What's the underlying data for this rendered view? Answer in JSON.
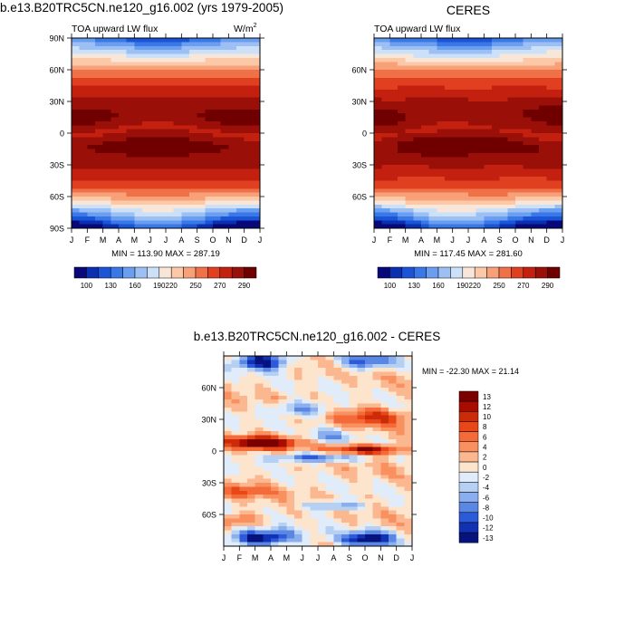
{
  "chart_data": [
    {
      "type": "heatmap",
      "title": "b.e13.B20TRC5CN.ne120_g16.002 (yrs 1979-2005)",
      "subtitle_left": "TOA upward LW flux",
      "units_base": "W/m",
      "units_exp": "2",
      "stats": "MIN = 113.90 MAX = 287.19",
      "x_ticks": [
        "J",
        "F",
        "M",
        "A",
        "M",
        "J",
        "J",
        "A",
        "S",
        "O",
        "N",
        "D",
        "J"
      ],
      "y_ticks": [
        "90N",
        "60N",
        "30N",
        "0",
        "30S",
        "60S",
        "90S"
      ],
      "ylim": [
        -90,
        90
      ],
      "colorbar_labels": [
        "100",
        "130",
        "160",
        "190",
        "220",
        "250",
        "270",
        "290"
      ],
      "model": "lw"
    },
    {
      "type": "heatmap",
      "title": "CERES",
      "subtitle_left": "TOA upward LW flux",
      "stats": "MIN = 117.45 MAX = 281.60",
      "x_ticks": [
        "J",
        "F",
        "M",
        "A",
        "M",
        "J",
        "J",
        "A",
        "S",
        "O",
        "N",
        "D",
        "J"
      ],
      "y_ticks": [
        "60N",
        "30N",
        "0",
        "30S",
        "60S"
      ],
      "ylim": [
        -90,
        90
      ],
      "colorbar_labels": [
        "100",
        "130",
        "160",
        "190",
        "220",
        "250",
        "270",
        "290"
      ],
      "model": "lw_obs"
    },
    {
      "type": "heatmap",
      "title": "b.e13.B20TRC5CN.ne120_g16.002 - CERES",
      "stats": "MIN = -22.30 MAX =  21.14",
      "x_ticks": [
        "J",
        "F",
        "M",
        "A",
        "M",
        "J",
        "J",
        "A",
        "S",
        "O",
        "N",
        "D",
        "J"
      ],
      "y_ticks": [
        "60N",
        "30N",
        "0",
        "30S",
        "60S"
      ],
      "ylim": [
        -90,
        90
      ],
      "colorbar_labels": [
        "13",
        "12",
        "10",
        "8",
        "6",
        "4",
        "2",
        "0",
        "-2",
        "-4",
        "-6",
        "-8",
        "-10",
        "-12",
        "-13"
      ],
      "model": "diff"
    }
  ],
  "colors": {
    "lw_palette": [
      "#08087a",
      "#0a2fb0",
      "#1a55d8",
      "#3a78e8",
      "#6a9ef0",
      "#9cc0f4",
      "#cce0f8",
      "#f8e6d8",
      "#fbc8a8",
      "#f8a078",
      "#f07048",
      "#e04020",
      "#c42010",
      "#9a1008",
      "#700000"
    ],
    "diff_palette": [
      "#7a0000",
      "#a80c00",
      "#cc2a08",
      "#e84818",
      "#f46a38",
      "#f89060",
      "#fbb890",
      "#fde4cc",
      "#e0ecfa",
      "#b6d0f4",
      "#8aaeee",
      "#5a86e4",
      "#2c5ad8",
      "#1232b4",
      "#06127e"
    ]
  }
}
